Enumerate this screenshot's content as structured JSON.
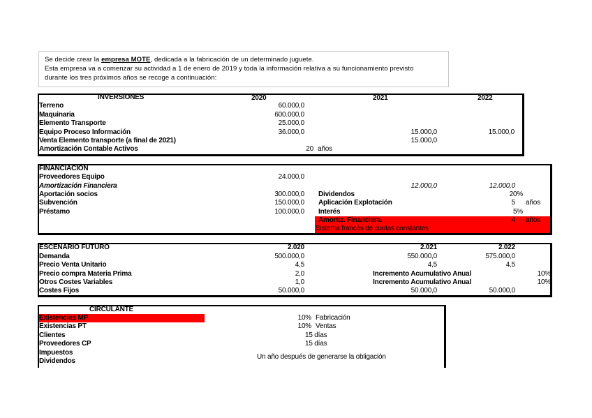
{
  "intro": {
    "line1_pre": "Se decide crear la ",
    "line1_company": "empresa MOTE",
    "line1_post": ", dedicada a la fabricación de un determinado juguete.",
    "line2": "Esta empresa va a comenzar su actividad a 1 de enero de 2019 y toda la información relativa a su funcionamiento previsto",
    "line3": "durante los tres próximos años se recoge a continuación:"
  },
  "inversiones": {
    "title": "INVERSIONES",
    "years": [
      "2020",
      "2021",
      "2022"
    ],
    "rows": [
      {
        "label": "Terreno",
        "v2020": "60.000,0"
      },
      {
        "label": "Maquinaria",
        "v2020": "600.000,0"
      },
      {
        "label": "Elemento Transporte",
        "v2020": "25.000,0"
      },
      {
        "label": "Equipo Proceso Información",
        "v2020": "36.000,0",
        "v2021": "15.000,0",
        "v2022": "15.000,0"
      },
      {
        "label": "Venta Elemento transporte (a final de 2021)",
        "v2021": "15.000,0"
      },
      {
        "label": "Amortización Contable Activos",
        "value": "20",
        "unit": "años"
      }
    ]
  },
  "financiacion": {
    "title": "FINANCIACIÓN",
    "rows": [
      {
        "label": "Proveedores Equipo",
        "v2020": "24.000,0"
      },
      {
        "label": "Amortización Financiera",
        "v2021": "12.000,0",
        "v2022": "12.000,0"
      },
      {
        "label": "Aportación socios",
        "v2020": "300.000,0"
      },
      {
        "label": "Subvención",
        "v2020": "150.000,0"
      },
      {
        "label": "Préstamo",
        "v2020": "100.000,0"
      }
    ],
    "params": [
      {
        "label": "Dividendos",
        "value": "20%"
      },
      {
        "label": "Aplicación Explotación",
        "value": "5",
        "unit": "años"
      },
      {
        "label": "Interés",
        "value": "5%"
      },
      {
        "label": "Amortiz. Financiera.",
        "value": "4",
        "unit": "años"
      }
    ],
    "note": "Sistema francés de cuotas constantes"
  },
  "escenario": {
    "title": "ESCENARIO FUTURO",
    "years": [
      "2.020",
      "2.021",
      "2.022"
    ],
    "rows": [
      {
        "label": "Demanda",
        "v2020": "500.000,0",
        "v2021": "550.000,0",
        "v2022": "575.000,0"
      },
      {
        "label": "Precio Venta Unitario",
        "v2020": "4,5",
        "v2021": "4,5",
        "v2022": "4,5"
      },
      {
        "label": "Precio compra Materia Prima",
        "v2020": "2,0",
        "note": "Incremento Acumulativo Anual",
        "pct": "10%"
      },
      {
        "label": "Otros Costes Variables",
        "v2020": "1,0",
        "note": "Incremento Acumulativo Anual",
        "pct": "10%"
      },
      {
        "label": "Costes Fijos",
        "v2020": "50.000,0",
        "v2021": "50.000,0",
        "v2022": "50.000,0"
      }
    ]
  },
  "circulante": {
    "title": "CIRCULANTE",
    "rows": [
      {
        "label": "Existencias MP",
        "value": "10%",
        "unit": "Fabricación"
      },
      {
        "label": "Existencias PT",
        "value": "10%",
        "unit": "Ventas"
      },
      {
        "label": "Clientes",
        "value": "15 días"
      },
      {
        "label": "Proveedores CP",
        "value": "15 días"
      },
      {
        "label": "Impuestos"
      },
      {
        "label": "Dividendos"
      }
    ],
    "note": "Un año después de generarse la obligación"
  },
  "colors": {
    "highlight": "#ff0000"
  }
}
